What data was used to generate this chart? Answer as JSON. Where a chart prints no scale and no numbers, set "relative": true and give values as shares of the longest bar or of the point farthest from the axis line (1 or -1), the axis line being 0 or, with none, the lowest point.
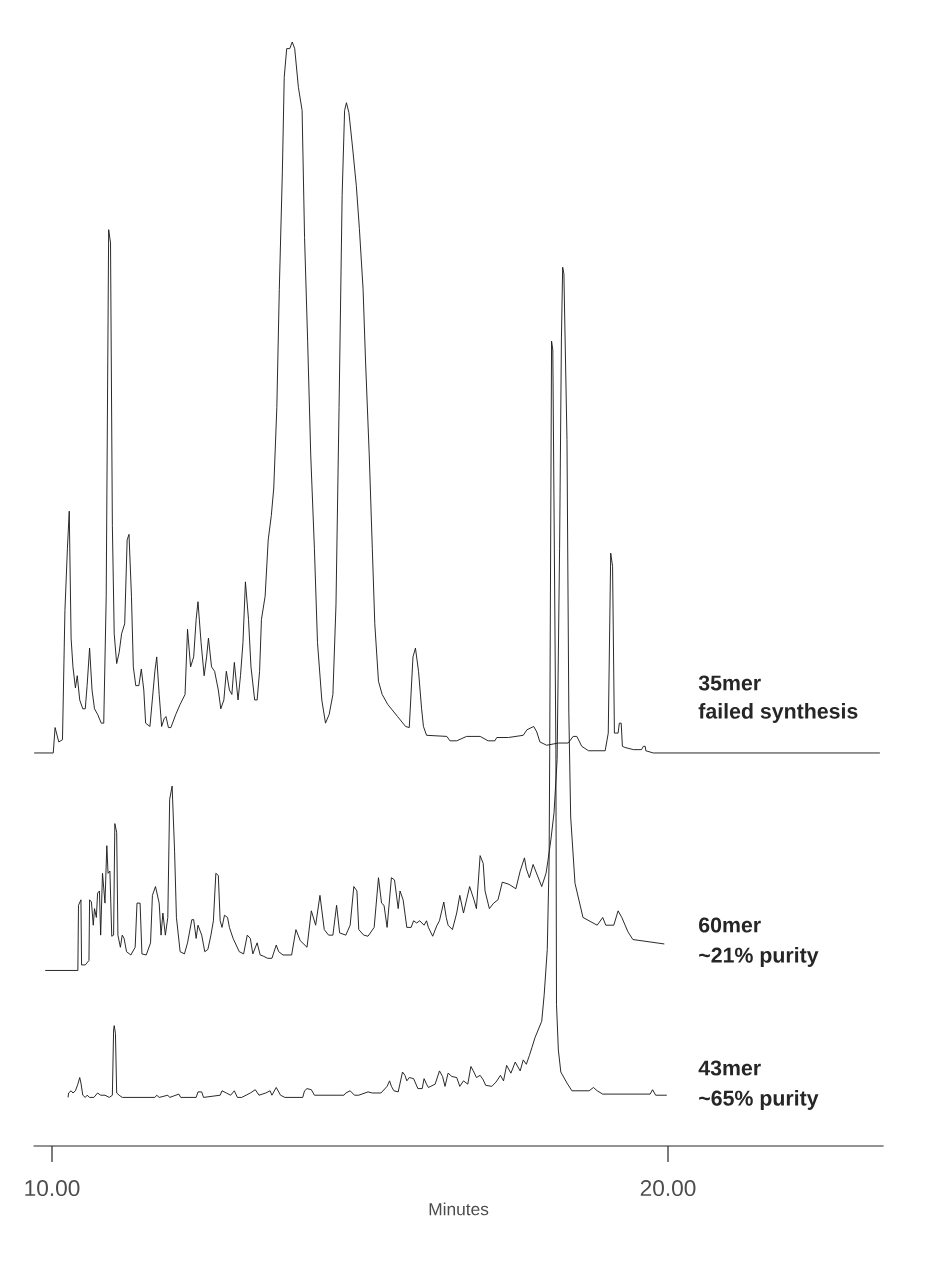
{
  "chart_data": {
    "type": "line",
    "relative": true,
    "xlim": [
      9.7,
      23.5
    ],
    "tick_labels": "x",
    "xlabel": "Minutes",
    "xticks": [
      {
        "value": 10,
        "label": "10.00"
      },
      {
        "value": 20,
        "label": "20.00"
      }
    ],
    "annotations": [
      "failed synthesis",
      "~21% purity",
      "~65% purity"
    ],
    "series": [
      {
        "name": "35mer",
        "color": "#1a1a1a",
        "x": [
          9.71,
          10.02,
          10.05,
          10.11,
          10.17,
          10.21,
          10.25,
          10.28,
          10.31,
          10.34,
          10.38,
          10.41,
          10.45,
          10.5,
          10.54,
          10.57,
          10.61,
          10.65,
          10.69,
          10.74,
          10.8,
          10.84,
          10.88,
          10.92,
          10.95,
          10.98,
          11.01,
          11.05,
          11.09,
          11.13,
          11.18,
          11.22,
          11.25,
          11.29,
          11.32,
          11.36,
          11.41,
          11.45,
          11.49,
          11.52,
          11.59,
          11.67,
          11.7,
          11.74,
          11.78,
          11.82,
          11.85,
          11.89,
          11.93,
          12.01,
          12.08,
          12.16,
          12.2,
          12.25,
          12.3,
          12.34,
          12.37,
          12.42,
          12.47,
          12.51,
          12.54,
          12.59,
          12.64,
          12.7,
          12.74,
          12.79,
          12.83,
          12.88,
          12.92,
          12.96,
          13.02,
          13.06,
          13.1,
          13.14,
          13.19,
          13.23,
          13.29,
          13.33,
          13.37,
          13.4,
          13.46,
          13.51,
          13.56,
          13.6,
          13.65,
          13.69,
          13.74,
          13.77,
          13.81,
          13.86,
          13.9,
          13.94,
          14.0,
          14.06,
          14.1,
          14.15,
          14.2,
          14.26,
          14.31,
          14.38,
          14.44,
          14.5,
          14.56,
          14.61,
          14.66,
          14.71,
          14.75,
          14.78,
          14.82,
          14.88,
          14.94,
          14.99,
          15.05,
          15.09,
          15.15,
          15.2,
          15.24,
          15.3,
          15.36,
          15.45,
          15.61,
          15.74,
          15.8,
          15.86,
          15.9,
          15.95,
          16.0,
          16.03,
          16.08,
          16.41,
          16.46,
          16.57,
          16.73,
          16.95,
          17.08,
          17.19,
          17.22,
          17.41,
          17.65,
          17.71,
          17.82,
          17.87,
          17.92,
          18.03,
          18.22,
          18.38,
          18.46,
          18.52,
          18.6,
          18.71,
          18.98,
          19.03,
          19.07,
          19.1,
          19.13,
          19.19,
          19.21,
          19.24,
          19.26,
          19.3,
          19.44,
          19.57,
          19.6,
          19.63,
          19.64,
          19.76,
          23.44
        ],
        "values": [
          0.356,
          0.356,
          0.379,
          0.366,
          0.368,
          0.485,
          0.541,
          0.575,
          0.46,
          0.434,
          0.415,
          0.426,
          0.404,
          0.396,
          0.396,
          0.417,
          0.451,
          0.413,
          0.396,
          0.391,
          0.383,
          0.383,
          0.498,
          0.83,
          0.818,
          0.562,
          0.464,
          0.437,
          0.447,
          0.464,
          0.473,
          0.549,
          0.554,
          0.498,
          0.434,
          0.417,
          0.417,
          0.432,
          0.413,
          0.383,
          0.38,
          0.43,
          0.443,
          0.409,
          0.38,
          0.387,
          0.389,
          0.379,
          0.379,
          0.391,
          0.4,
          0.409,
          0.468,
          0.434,
          0.443,
          0.477,
          0.493,
          0.456,
          0.426,
          0.443,
          0.46,
          0.434,
          0.43,
          0.413,
          0.396,
          0.404,
          0.43,
          0.413,
          0.409,
          0.438,
          0.404,
          0.426,
          0.456,
          0.511,
          0.477,
          0.434,
          0.404,
          0.404,
          0.43,
          0.477,
          0.498,
          0.549,
          0.571,
          0.596,
          0.669,
          0.776,
          0.883,
          0.968,
          0.994,
          0.994,
          1,
          0.994,
          0.959,
          0.938,
          0.823,
          0.729,
          0.626,
          0.541,
          0.456,
          0.404,
          0.383,
          0.391,
          0.409,
          0.49,
          0.669,
          0.861,
          0.938,
          0.945,
          0.936,
          0.904,
          0.87,
          0.831,
          0.776,
          0.711,
          0.626,
          0.541,
          0.473,
          0.421,
          0.409,
          0.4,
          0.389,
          0.38,
          0.379,
          0.443,
          0.451,
          0.43,
          0.396,
          0.38,
          0.372,
          0.371,
          0.367,
          0.367,
          0.371,
          0.371,
          0.367,
          0.367,
          0.37,
          0.37,
          0.372,
          0.377,
          0.38,
          0.375,
          0.366,
          0.363,
          0.365,
          0.365,
          0.371,
          0.371,
          0.362,
          0.358,
          0.358,
          0.374,
          0.537,
          0.525,
          0.374,
          0.374,
          0.383,
          0.383,
          0.362,
          0.361,
          0.359,
          0.359,
          0.362,
          0.362,
          0.358,
          0.356,
          0.356
        ]
      },
      {
        "name": "60mer",
        "color": "#1a1a1a",
        "x": [
          9.89,
          10.42,
          10.43,
          10.47,
          10.48,
          10.54,
          10.6,
          10.61,
          10.64,
          10.67,
          10.69,
          10.72,
          10.74,
          10.77,
          10.79,
          10.82,
          10.86,
          10.89,
          10.91,
          10.94,
          10.97,
          11.0,
          11.02,
          11.05,
          11.07,
          11.11,
          11.14,
          11.17,
          11.21,
          11.28,
          11.35,
          11.38,
          11.43,
          11.46,
          11.53,
          11.6,
          11.63,
          11.68,
          11.74,
          11.77,
          11.8,
          11.84,
          11.88,
          11.91,
          11.95,
          11.99,
          12.02,
          12.08,
          12.15,
          12.2,
          12.27,
          12.3,
          12.34,
          12.37,
          12.43,
          12.48,
          12.53,
          12.58,
          12.62,
          12.66,
          12.7,
          12.73,
          12.76,
          12.8,
          12.85,
          12.88,
          12.94,
          13.04,
          13.11,
          13.17,
          13.22,
          13.26,
          13.33,
          13.38,
          13.43,
          13.5,
          13.57,
          13.64,
          13.68,
          13.75,
          13.89,
          13.96,
          14.03,
          14.14,
          14.21,
          14.28,
          14.35,
          14.42,
          14.49,
          14.56,
          14.62,
          14.67,
          14.77,
          14.84,
          14.9,
          14.95,
          14.98,
          15.06,
          15.13,
          15.23,
          15.3,
          15.35,
          15.39,
          15.44,
          15.51,
          15.56,
          15.62,
          15.65,
          15.7,
          15.76,
          15.83,
          15.87,
          15.92,
          15.97,
          16.04,
          16.08,
          16.11,
          16.18,
          16.25,
          16.29,
          16.36,
          16.4,
          16.43,
          16.5,
          16.57,
          16.62,
          16.68,
          16.78,
          16.85,
          16.89,
          16.95,
          17.0,
          17.03,
          17.1,
          17.17,
          17.24,
          17.31,
          17.42,
          17.53,
          17.6,
          17.67,
          17.7,
          17.75,
          17.81,
          17.88,
          17.95,
          18.02,
          18.05,
          18.1,
          18.15,
          18.2,
          18.24,
          18.27,
          18.29,
          18.31,
          18.36,
          18.39,
          18.42,
          18.49,
          18.62,
          18.85,
          18.94,
          18.99,
          19.12,
          19.19,
          19.25,
          19.35,
          19.43,
          19.94
        ],
        "values": [
          0.159,
          0.159,
          0.218,
          0.223,
          0.164,
          0.164,
          0.168,
          0.223,
          0.221,
          0.2,
          0.215,
          0.207,
          0.229,
          0.231,
          0.191,
          0.247,
          0.22,
          0.272,
          0.247,
          0.249,
          0.19,
          0.191,
          0.292,
          0.284,
          0.191,
          0.18,
          0.191,
          0.188,
          0.176,
          0.173,
          0.18,
          0.22,
          0.22,
          0.174,
          0.173,
          0.184,
          0.227,
          0.235,
          0.22,
          0.191,
          0.211,
          0.191,
          0.207,
          0.314,
          0.326,
          0.267,
          0.207,
          0.176,
          0.174,
          0.184,
          0.205,
          0.205,
          0.188,
          0.2,
          0.191,
          0.176,
          0.178,
          0.191,
          0.204,
          0.247,
          0.245,
          0.204,
          0.198,
          0.209,
          0.207,
          0.198,
          0.188,
          0.176,
          0.174,
          0.191,
          0.188,
          0.174,
          0.184,
          0.173,
          0.172,
          0.17,
          0.17,
          0.182,
          0.176,
          0.173,
          0.173,
          0.196,
          0.186,
          0.18,
          0.213,
          0.2,
          0.227,
          0.196,
          0.191,
          0.191,
          0.218,
          0.193,
          0.191,
          0.2,
          0.235,
          0.231,
          0.196,
          0.191,
          0.19,
          0.198,
          0.243,
          0.22,
          0.218,
          0.198,
          0.243,
          0.241,
          0.215,
          0.231,
          0.223,
          0.198,
          0.198,
          0.204,
          0.202,
          0.204,
          0.2,
          0.204,
          0.198,
          0.19,
          0.2,
          0.204,
          0.221,
          0.207,
          0.2,
          0.196,
          0.211,
          0.227,
          0.211,
          0.235,
          0.223,
          0.215,
          0.263,
          0.256,
          0.231,
          0.215,
          0.22,
          0.223,
          0.239,
          0.237,
          0.233,
          0.249,
          0.261,
          0.251,
          0.243,
          0.255,
          0.245,
          0.235,
          0.247,
          0.258,
          0.278,
          0.302,
          0.35,
          0.541,
          0.732,
          0.796,
          0.79,
          0.64,
          0.393,
          0.298,
          0.238,
          0.207,
          0.2,
          0.207,
          0.2,
          0.2,
          0.213,
          0.207,
          0.194,
          0.187,
          0.183
        ]
      },
      {
        "name": "43mer",
        "color": "#1a1a1a",
        "x": [
          10.26,
          10.27,
          10.31,
          10.34,
          10.38,
          10.42,
          10.45,
          10.47,
          10.5,
          10.54,
          10.57,
          10.61,
          10.68,
          10.74,
          10.79,
          10.86,
          10.93,
          10.98,
          11.0,
          11.01,
          11.03,
          11.05,
          11.09,
          11.14,
          11.67,
          11.7,
          11.74,
          11.88,
          11.91,
          12.06,
          12.09,
          12.34,
          12.37,
          12.43,
          12.46,
          12.73,
          12.76,
          12.83,
          12.9,
          12.96,
          13.01,
          13.08,
          13.15,
          13.22,
          13.3,
          13.36,
          13.47,
          13.54,
          13.57,
          13.64,
          13.71,
          13.78,
          14.07,
          14.1,
          14.14,
          14.21,
          14.26,
          14.42,
          14.74,
          14.77,
          14.84,
          14.91,
          14.98,
          15.13,
          15.2,
          15.34,
          15.44,
          15.48,
          15.51,
          15.55,
          15.62,
          15.69,
          15.73,
          15.76,
          15.8,
          15.87,
          15.94,
          16.01,
          16.04,
          16.08,
          16.11,
          16.22,
          16.29,
          16.34,
          16.38,
          16.43,
          16.49,
          16.57,
          16.62,
          16.68,
          16.75,
          16.8,
          16.84,
          16.89,
          16.95,
          17.0,
          17.04,
          17.14,
          17.21,
          17.28,
          17.33,
          17.38,
          17.45,
          17.52,
          17.6,
          17.65,
          17.7,
          17.75,
          17.79,
          17.84,
          17.95,
          17.99,
          18.04,
          18.07,
          18.08,
          18.11,
          18.13,
          18.18,
          18.19,
          18.22,
          18.26,
          18.36,
          18.44,
          18.72,
          18.79,
          18.85,
          18.94,
          19.71,
          19.75,
          19.8,
          19.98
        ],
        "values": [
          0.044,
          0.048,
          0.05,
          0.048,
          0.05,
          0.056,
          0.062,
          0.057,
          0.046,
          0.044,
          0.046,
          0.044,
          0.044,
          0.048,
          0.046,
          0.046,
          0.044,
          0.046,
          0.105,
          0.109,
          0.102,
          0.048,
          0.046,
          0.044,
          0.044,
          0.046,
          0.044,
          0.046,
          0.044,
          0.047,
          0.044,
          0.044,
          0.049,
          0.049,
          0.044,
          0.046,
          0.05,
          0.048,
          0.046,
          0.05,
          0.044,
          0.044,
          0.046,
          0.048,
          0.051,
          0.046,
          0.048,
          0.05,
          0.046,
          0.053,
          0.046,
          0.044,
          0.044,
          0.05,
          0.052,
          0.051,
          0.046,
          0.046,
          0.046,
          0.048,
          0.05,
          0.046,
          0.046,
          0.049,
          0.048,
          0.048,
          0.054,
          0.059,
          0.054,
          0.05,
          0.049,
          0.067,
          0.064,
          0.059,
          0.062,
          0.061,
          0.052,
          0.052,
          0.061,
          0.056,
          0.053,
          0.056,
          0.068,
          0.063,
          0.054,
          0.066,
          0.063,
          0.062,
          0.054,
          0.059,
          0.056,
          0.072,
          0.068,
          0.062,
          0.064,
          0.06,
          0.055,
          0.054,
          0.058,
          0.064,
          0.059,
          0.073,
          0.066,
          0.076,
          0.068,
          0.078,
          0.074,
          0.082,
          0.089,
          0.098,
          0.113,
          0.137,
          0.178,
          0.259,
          0.359,
          0.729,
          0.721,
          0.359,
          0.128,
          0.087,
          0.067,
          0.057,
          0.05,
          0.05,
          0.053,
          0.05,
          0.047,
          0.047,
          0.051,
          0.046,
          0.046
        ]
      }
    ]
  }
}
